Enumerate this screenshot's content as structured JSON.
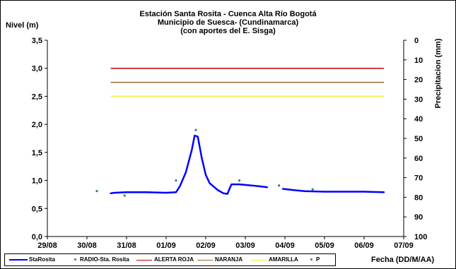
{
  "chart_data": {
    "type": "line",
    "title": "Estación Santa Rosita - Cuenca Alta Río Bogotá",
    "subtitle_lines": [
      "Municipio de Suesca- (Cundinamarca)",
      "(con aportes del  E. Sisga)"
    ],
    "ylabel": "Nivel (m)",
    "y2label": "Precipitacion (mm)",
    "xlabel": "Fecha (DD/M/AA)",
    "ylim": [
      0,
      3.5
    ],
    "y2lim": [
      100,
      0
    ],
    "y_ticks": [
      "0,0",
      "0,5",
      "1,0",
      "1,5",
      "2,0",
      "2,5",
      "3,0",
      "3,5"
    ],
    "y2_ticks": [
      "100",
      "90",
      "80",
      "70",
      "60",
      "50",
      "40",
      "30",
      "20",
      "10",
      "0"
    ],
    "x_ticks": [
      "29/08",
      "30/08",
      "31/08",
      "01/09",
      "02/09",
      "03/09",
      "04/09",
      "05/09",
      "06/09",
      "07/09"
    ],
    "grid": false,
    "legend_position": "bottom",
    "series": [
      {
        "name": "StaRosita",
        "color": "#0000ff",
        "style": "line",
        "segments": [
          [
            [
              1.6,
              0.77
            ],
            [
              1.7,
              0.78
            ],
            [
              2.0,
              0.79
            ],
            [
              2.5,
              0.79
            ],
            [
              3.0,
              0.78
            ],
            [
              3.25,
              0.79
            ],
            [
              3.35,
              0.9
            ],
            [
              3.5,
              1.15
            ],
            [
              3.65,
              1.55
            ],
            [
              3.72,
              1.8
            ],
            [
              3.8,
              1.78
            ],
            [
              3.9,
              1.4
            ],
            [
              4.0,
              1.1
            ],
            [
              4.1,
              0.95
            ],
            [
              4.3,
              0.83
            ],
            [
              4.45,
              0.77
            ],
            [
              4.55,
              0.76
            ],
            [
              4.6,
              0.85
            ],
            [
              4.65,
              0.93
            ],
            [
              4.85,
              0.93
            ],
            [
              5.0,
              0.92
            ],
            [
              5.3,
              0.9
            ],
            [
              5.55,
              0.88
            ]
          ],
          [
            [
              5.95,
              0.85
            ],
            [
              6.2,
              0.83
            ],
            [
              6.5,
              0.81
            ],
            [
              7.0,
              0.8
            ],
            [
              7.6,
              0.8
            ],
            [
              8.0,
              0.8
            ],
            [
              8.5,
              0.79
            ]
          ]
        ]
      },
      {
        "name": "RADIO-Sta. Rosita",
        "color": "#2e7d7d",
        "style": "points",
        "points": [
          [
            1.25,
            0.81
          ],
          [
            1.95,
            0.73
          ],
          [
            3.25,
            1.0
          ],
          [
            3.75,
            1.9
          ],
          [
            4.85,
            1.0
          ],
          [
            5.85,
            0.91
          ],
          [
            6.7,
            0.84
          ]
        ]
      },
      {
        "name": "ALERTA ROJA",
        "color": "#cc0000",
        "style": "hline",
        "value": 3.0,
        "x_range": [
          1.6,
          8.5
        ]
      },
      {
        "name": "NARANJA",
        "color": "#996633",
        "style": "hline",
        "value": 2.75,
        "x_range": [
          1.6,
          8.5
        ]
      },
      {
        "name": "AMARILLA",
        "color": "#eeee33",
        "style": "hline",
        "value": 2.5,
        "x_range": [
          1.6,
          8.5
        ]
      },
      {
        "name": "P",
        "color": "#2e7d7d",
        "style": "points",
        "points": []
      }
    ]
  }
}
